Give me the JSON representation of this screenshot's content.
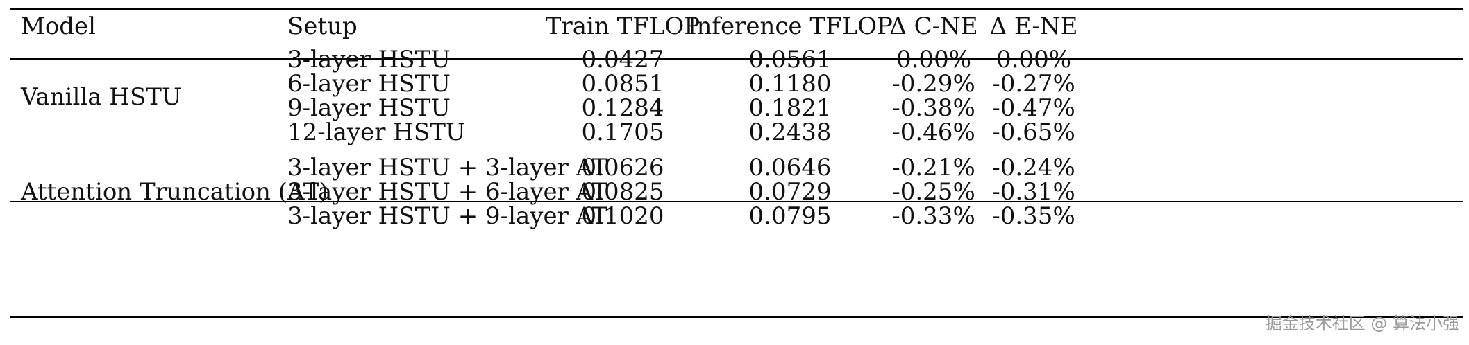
{
  "table": {
    "headers": {
      "model": "Model",
      "setup": "Setup",
      "train_tflop": "Train TFLOP",
      "inference_tflop": "Inference TFLOP",
      "delta_cne": "Δ C-NE",
      "delta_ene": "Δ E-NE"
    },
    "groups": [
      {
        "model": "Vanilla HSTU",
        "rows": [
          {
            "setup": "3-layer HSTU",
            "train": "0.0427",
            "inference": "0.0561",
            "cne": "0.00%",
            "ene": "0.00%"
          },
          {
            "setup": "6-layer HSTU",
            "train": "0.0851",
            "inference": "0.1180",
            "cne": "-0.29%",
            "ene": "-0.27%"
          },
          {
            "setup": "9-layer HSTU",
            "train": "0.1284",
            "inference": "0.1821",
            "cne": "-0.38%",
            "ene": "-0.47%"
          },
          {
            "setup": "12-layer HSTU",
            "train": "0.1705",
            "inference": "0.2438",
            "cne": "-0.46%",
            "ene": "-0.65%"
          }
        ]
      },
      {
        "model": "Attention Truncation (AT)",
        "rows": [
          {
            "setup": "3-layer HSTU + 3-layer AT",
            "train": "0.0626",
            "inference": "0.0646",
            "cne": "-0.21%",
            "ene": "-0.24%"
          },
          {
            "setup": "3-layer HSTU + 6-layer AT",
            "train": "0.0825",
            "inference": "0.0729",
            "cne": "-0.25%",
            "ene": "-0.31%"
          },
          {
            "setup": "3-layer HSTU + 9-layer AT",
            "train": "0.1020",
            "inference": "0.0795",
            "cne": "-0.33%",
            "ene": "-0.35%"
          }
        ]
      }
    ]
  },
  "watermark": "掘金技术社区 @ 算法小强"
}
